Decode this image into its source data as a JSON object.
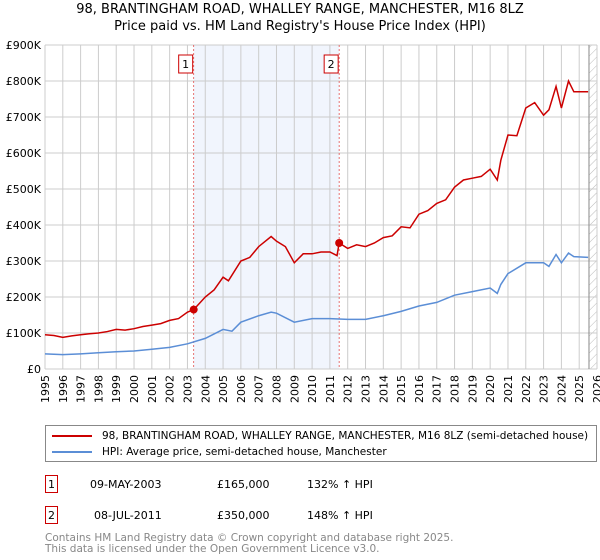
{
  "title_line1": "98, BRANTINGHAM ROAD, WHALLEY RANGE, MANCHESTER, M16 8LZ",
  "title_line2": "Price paid vs. HM Land Registry's House Price Index (HPI)",
  "chart_data": {
    "type": "line",
    "ylim": [
      0,
      900000
    ],
    "xlim": [
      1995,
      2026
    ],
    "yticks": [
      {
        "v": 0,
        "label": "£0"
      },
      {
        "v": 100000,
        "label": "£100K"
      },
      {
        "v": 200000,
        "label": "£200K"
      },
      {
        "v": 300000,
        "label": "£300K"
      },
      {
        "v": 400000,
        "label": "£400K"
      },
      {
        "v": 500000,
        "label": "£500K"
      },
      {
        "v": 600000,
        "label": "£600K"
      },
      {
        "v": 700000,
        "label": "£700K"
      },
      {
        "v": 800000,
        "label": "£800K"
      },
      {
        "v": 900000,
        "label": "£900K"
      }
    ],
    "xticks": [
      "1995",
      "1996",
      "1997",
      "1998",
      "1999",
      "2000",
      "2001",
      "2002",
      "2003",
      "2004",
      "2005",
      "2006",
      "2007",
      "2008",
      "2009",
      "2010",
      "2011",
      "2012",
      "2013",
      "2014",
      "2015",
      "2016",
      "2017",
      "2018",
      "2019",
      "2020",
      "2021",
      "2022",
      "2023",
      "2024",
      "2025",
      "2026"
    ],
    "shaded_range": [
      2003.35,
      2011.52
    ],
    "forecast_from": 2025.55,
    "series": [
      {
        "name": "98, BRANTINGHAM ROAD, WHALLEY RANGE, MANCHESTER, M16 8LZ (semi-detached house)",
        "color": "#cc0000",
        "x": [
          1995,
          1995.5,
          1996,
          1996.5,
          1997,
          1997.5,
          1998,
          1998.5,
          1999,
          1999.5,
          2000,
          2000.5,
          2001,
          2001.5,
          2002,
          2002.5,
          2003,
          2003.35,
          2004,
          2004.5,
          2005,
          2005.3,
          2006,
          2006.5,
          2007,
          2007.7,
          2008,
          2008.5,
          2009,
          2009.5,
          2010,
          2010.5,
          2011,
          2011.4,
          2011.52,
          2012,
          2012.5,
          2013,
          2013.5,
          2014,
          2014.5,
          2015,
          2015.5,
          2016,
          2016.5,
          2017,
          2017.5,
          2018,
          2018.5,
          2019,
          2019.5,
          2020,
          2020.4,
          2020.6,
          2021,
          2021.5,
          2022,
          2022.5,
          2023,
          2023.3,
          2023.7,
          2024,
          2024.4,
          2024.7,
          2025,
          2025.5
        ],
        "y": [
          95000,
          93000,
          88000,
          92000,
          95000,
          98000,
          100000,
          104000,
          110000,
          108000,
          112000,
          118000,
          122000,
          126000,
          135000,
          140000,
          158000,
          165000,
          200000,
          220000,
          255000,
          245000,
          300000,
          310000,
          340000,
          368000,
          355000,
          340000,
          295000,
          320000,
          320000,
          325000,
          325000,
          315000,
          350000,
          335000,
          345000,
          340000,
          350000,
          365000,
          370000,
          395000,
          392000,
          430000,
          440000,
          460000,
          470000,
          505000,
          525000,
          530000,
          535000,
          555000,
          525000,
          580000,
          650000,
          648000,
          725000,
          740000,
          705000,
          720000,
          785000,
          725000,
          800000,
          770000,
          770000,
          770000
        ]
      },
      {
        "name": "HPI: Average price, semi-detached house, Manchester",
        "color": "#5b8ed6",
        "x": [
          1995,
          1996,
          1997,
          1998,
          1999,
          2000,
          2001,
          2002,
          2003,
          2004,
          2005,
          2005.5,
          2006,
          2007,
          2007.7,
          2008,
          2009,
          2010,
          2011,
          2012,
          2013,
          2014,
          2015,
          2016,
          2017,
          2018,
          2019,
          2020,
          2020.4,
          2020.6,
          2021,
          2022,
          2023,
          2023.3,
          2023.7,
          2024,
          2024.4,
          2024.7,
          2025.5
        ],
        "y": [
          42000,
          40000,
          42000,
          45000,
          48000,
          50000,
          55000,
          60000,
          70000,
          85000,
          110000,
          105000,
          130000,
          148000,
          158000,
          155000,
          130000,
          140000,
          140000,
          138000,
          138000,
          148000,
          160000,
          175000,
          185000,
          205000,
          215000,
          225000,
          210000,
          235000,
          265000,
          295000,
          295000,
          285000,
          318000,
          295000,
          322000,
          312000,
          310000
        ]
      }
    ],
    "markers": [
      {
        "label": "1",
        "x": 2003.35,
        "y": 165000
      },
      {
        "label": "2",
        "x": 2011.52,
        "y": 350000
      }
    ]
  },
  "legend": {
    "property": "98, BRANTINGHAM ROAD, WHALLEY RANGE, MANCHESTER, M16 8LZ (semi-detached house)",
    "hpi": "HPI: Average price, semi-detached house, Manchester"
  },
  "sales": [
    {
      "num": "1",
      "date": "09-MAY-2003",
      "price": "£165,000",
      "hpi": "132% ↑ HPI"
    },
    {
      "num": "2",
      "date": "08-JUL-2011",
      "price": "£350,000",
      "hpi": "148% ↑ HPI"
    }
  ],
  "footer": {
    "line1": "Contains HM Land Registry data © Crown copyright and database right 2025.",
    "line2": "This data is licensed under the Open Government Licence v3.0."
  }
}
